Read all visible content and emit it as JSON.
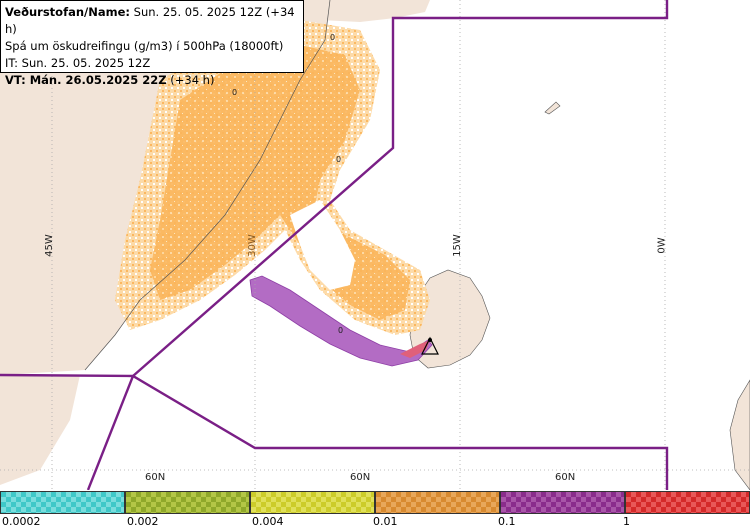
{
  "info": {
    "line1_bold": "Veðurstofan/Name:",
    "line1_rest": "Sun. 25. 05. 2025 12Z (+34 h)",
    "line2": "Spá um öskudreifingu (g/m3) í 500hPa (18000ft)",
    "line3": "IT: Sun. 25. 05. 2025 12Z",
    "line4_bold": "VT: Mán. 26.05.2025 22Z",
    "line4_rest": "(+34 h)"
  },
  "map": {
    "lon_labels": [
      "45W",
      "30W",
      "15W",
      "0W"
    ],
    "lat_labels": [
      "60N",
      "60N",
      "60N"
    ],
    "contour_labels": [
      "0",
      "0",
      "0",
      "0"
    ],
    "colors": {
      "land": "#f2e4d8",
      "sea": "#ffffff",
      "ash_light": "#fdd9a4",
      "ash_orange": "#fbb55a",
      "ash_purple": "#b36cc4",
      "boundary": "#7a1f86"
    }
  },
  "legend": {
    "bins": [
      {
        "color": "#3fc8c8",
        "pattern": "#79dddd"
      },
      {
        "color": "#8fa82a",
        "pattern": "#b3c646"
      },
      {
        "color": "#cccc2a",
        "pattern": "#e0e05a"
      },
      {
        "color": "#d88a30",
        "pattern": "#e8a75a"
      },
      {
        "color": "#8a2c8c",
        "pattern": "#a855a8"
      },
      {
        "color": "#d42a2a",
        "pattern": "#e85858"
      }
    ],
    "ticks": [
      "0.0002",
      "0.002",
      "0.004",
      "0.01",
      "0.1",
      "1"
    ]
  }
}
